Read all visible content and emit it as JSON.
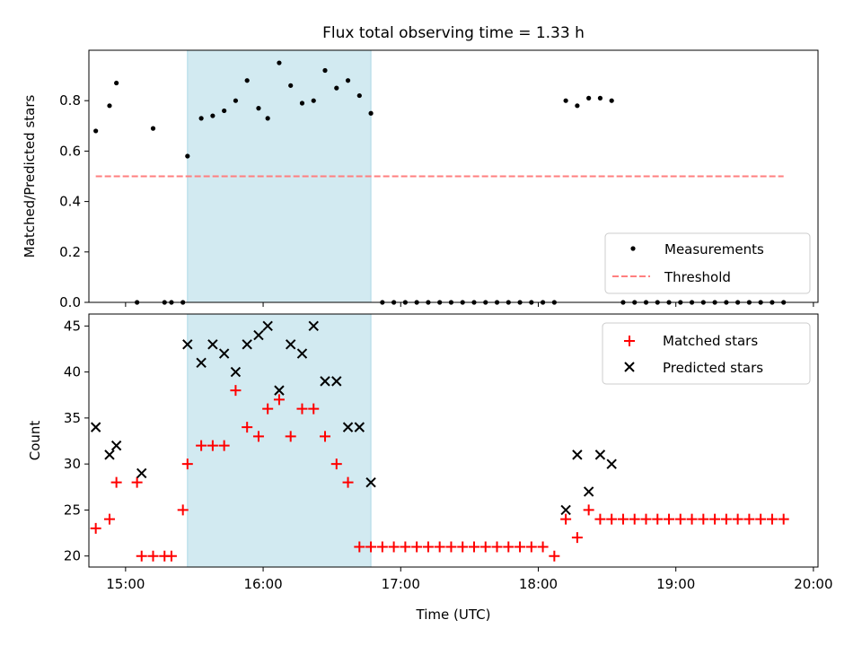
{
  "title": "Flux total observing time = 1.33 h",
  "colors": {
    "shade": "#add8e6",
    "measurement": "#000000",
    "threshold": "#ff7f7f",
    "matched": "#ff0000",
    "predicted": "#000000"
  },
  "chart_data": [
    {
      "type": "scatter",
      "panel": "top",
      "title": "Flux total observing time = 1.33 h",
      "ylabel": "Matched/Predicted stars",
      "xlabel": "",
      "xlim": [
        "14:44",
        "20:02"
      ],
      "ylim": [
        0,
        1.0
      ],
      "yticks": [
        "0.0",
        "0.2",
        "0.4",
        "0.6",
        "0.8"
      ],
      "shaded_interval": [
        "15:27",
        "16:47"
      ],
      "legend": {
        "placement": "lower right",
        "entries": [
          "Measurements",
          "Threshold"
        ]
      },
      "series": [
        {
          "name": "Measurements",
          "marker": "dot",
          "x": [
            "14:47",
            "14:53",
            "14:56",
            "15:05",
            "15:12",
            "15:17",
            "15:20",
            "15:25",
            "15:27",
            "15:33",
            "15:38",
            "15:43",
            "15:48",
            "15:53",
            "15:58",
            "16:02",
            "16:07",
            "16:12",
            "16:17",
            "16:22",
            "16:27",
            "16:32",
            "16:37",
            "16:42",
            "16:47",
            "16:52",
            "16:57",
            "17:02",
            "17:07",
            "17:12",
            "17:17",
            "17:22",
            "17:27",
            "17:32",
            "17:37",
            "17:42",
            "17:47",
            "17:52",
            "17:57",
            "18:02",
            "18:07",
            "18:12",
            "18:17",
            "18:22",
            "18:27",
            "18:32",
            "18:37",
            "18:42",
            "18:47",
            "18:52",
            "18:57",
            "19:02",
            "19:07",
            "19:12",
            "19:17",
            "19:22",
            "19:27",
            "19:32",
            "19:37",
            "19:42",
            "19:47"
          ],
          "y": [
            0.68,
            0.78,
            0.87,
            0.0,
            0.69,
            0.0,
            0.0,
            0.0,
            0.58,
            0.73,
            0.74,
            0.76,
            0.8,
            0.88,
            0.77,
            0.73,
            0.95,
            0.86,
            0.79,
            0.8,
            0.92,
            0.85,
            0.88,
            0.82,
            0.75,
            0.0,
            0.0,
            0.0,
            0.0,
            0.0,
            0.0,
            0.0,
            0.0,
            0.0,
            0.0,
            0.0,
            0.0,
            0.0,
            0.0,
            0.0,
            0.0,
            0.8,
            0.78,
            0.81,
            0.81,
            0.8,
            0.0,
            0.0,
            0.0,
            0.0,
            0.0,
            0.0,
            0.0,
            0.0,
            0.0,
            0.0,
            0.0,
            0.0,
            0.0,
            0.0,
            0.0
          ]
        },
        {
          "name": "Threshold",
          "style": "dashed",
          "x": [
            "14:47",
            "19:47"
          ],
          "y": [
            0.5,
            0.5
          ]
        }
      ]
    },
    {
      "type": "scatter",
      "panel": "bottom",
      "xlabel": "Time (UTC)",
      "ylabel": "Count",
      "xlim": [
        "14:44",
        "20:02"
      ],
      "ylim": [
        18.8,
        46.3
      ],
      "yticks": [
        "20",
        "25",
        "30",
        "35",
        "40",
        "45"
      ],
      "xticks": [
        "15:00",
        "16:00",
        "17:00",
        "18:00",
        "19:00",
        "20:00"
      ],
      "shaded_interval": [
        "15:27",
        "16:47"
      ],
      "legend": {
        "placement": "upper right",
        "entries": [
          "Matched stars",
          "Predicted stars"
        ]
      },
      "series": [
        {
          "name": "Matched stars",
          "marker": "plus",
          "x": [
            "14:47",
            "14:53",
            "14:56",
            "15:05",
            "15:07",
            "15:12",
            "15:17",
            "15:20",
            "15:25",
            "15:27",
            "15:33",
            "15:38",
            "15:43",
            "15:48",
            "15:53",
            "15:58",
            "16:02",
            "16:07",
            "16:12",
            "16:17",
            "16:22",
            "16:27",
            "16:32",
            "16:37",
            "16:42",
            "16:47",
            "16:52",
            "16:57",
            "17:02",
            "17:07",
            "17:12",
            "17:17",
            "17:22",
            "17:27",
            "17:32",
            "17:37",
            "17:42",
            "17:47",
            "17:52",
            "17:57",
            "18:02",
            "18:07",
            "18:12",
            "18:17",
            "18:22",
            "18:27",
            "18:32",
            "18:37",
            "18:42",
            "18:47",
            "18:52",
            "18:57",
            "19:02",
            "19:07",
            "19:12",
            "19:17",
            "19:22",
            "19:27",
            "19:32",
            "19:37",
            "19:42",
            "19:47"
          ],
          "y": [
            23,
            24,
            28,
            28,
            20,
            20,
            20,
            20,
            25,
            30,
            32,
            32,
            32,
            38,
            34,
            33,
            36,
            37,
            33,
            36,
            36,
            33,
            30,
            28,
            21,
            21,
            21,
            21,
            21,
            21,
            21,
            21,
            21,
            21,
            21,
            21,
            21,
            21,
            21,
            21,
            21,
            20,
            24,
            22,
            25,
            24,
            24,
            24,
            24,
            24,
            24,
            24,
            24,
            24,
            24,
            24,
            24,
            24,
            24,
            24,
            24,
            24
          ]
        },
        {
          "name": "Predicted stars",
          "marker": "x",
          "x": [
            "14:47",
            "14:53",
            "14:56",
            "15:07",
            "15:27",
            "15:33",
            "15:38",
            "15:43",
            "15:48",
            "15:53",
            "15:58",
            "16:02",
            "16:07",
            "16:12",
            "16:17",
            "16:22",
            "16:27",
            "16:32",
            "16:37",
            "16:42",
            "16:47",
            "18:12",
            "18:17",
            "18:22",
            "18:27",
            "18:32"
          ],
          "y": [
            34,
            31,
            32,
            29,
            43,
            41,
            43,
            42,
            40,
            43,
            44,
            45,
            38,
            43,
            42,
            45,
            39,
            39,
            34,
            34,
            28,
            25,
            31,
            27,
            31,
            30
          ]
        }
      ]
    }
  ]
}
